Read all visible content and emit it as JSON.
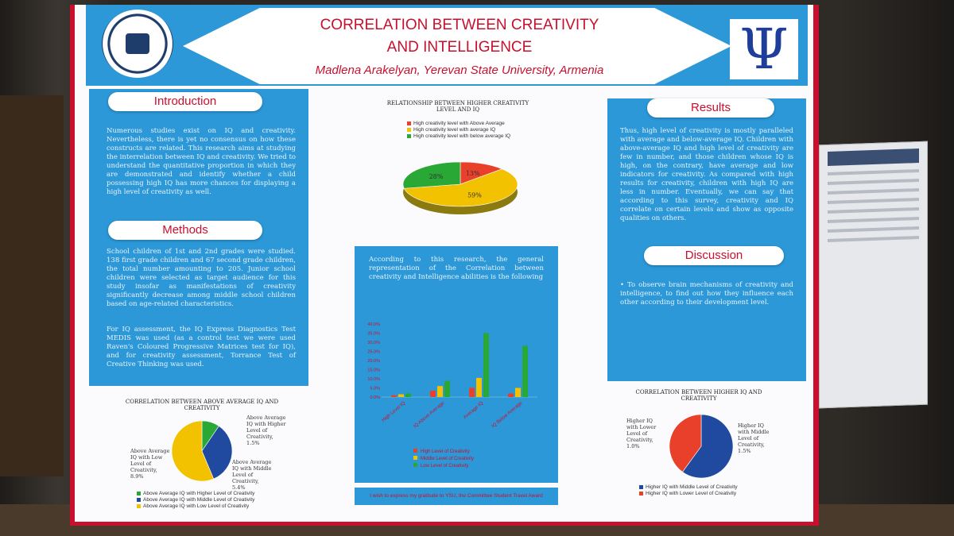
{
  "title_line1": "CORRELATION BETWEEN CREATIVITY",
  "title_line2": "AND INTELLIGENCE",
  "author": "Madlena Arakelyan, Yerevan State University, Armenia",
  "intro_heading": "Introduction",
  "intro_text": "Numerous studies exist on IQ and creativity. Nevertheless, there is yet no consensus on how these constructs are related. This research aims at studying the interrelation between IQ and creativity. We tried to understand the quantitative proportion in which they are demonstrated and identify whether a child possessing high IQ has more chances for displaying a high level of creativity as well.",
  "methods_heading": "Methods",
  "methods_text1": "School children of 1st and 2nd grades were studied. 138 first grade children and 67 second grade children, the total number amounting to 205. Junior school children were selected as target audience for this study insofar as manifestations of creativity significantly decrease among middle school children based on age-related characteristics.",
  "methods_text2": "For IQ assessment, the IQ Express Diagnostics Test MEDIS was used (as a control test we were used Raven's Coloured Progressive Matrices test for IQ), and for creativity assessment, Torrance Test of Creative Thinking was used.",
  "results_heading": "Results",
  "results_text": "Thus, high level of creativity is mostly paralleled with average and below-average IQ. Children with above-average IQ and high level of creativity are few in number, and those children whose IQ is high, on the contrary, have average and low indicators for creativity. As compared with high results for creativity, children with high IQ are less in number. Eventually, we can say that according to this survey, creativity and IQ correlate on certain levels and show as opposite qualities on others.",
  "discussion_heading": "Discussion",
  "discussion_text": "To observe brain mechanisms of creativity and intelligence, to find out how they influence each other according to their development level.",
  "center_text": "According to this research, the general representation of the Correlation between creativity and Intelligence abilities is the following",
  "footer_text": "I wish to express my gratitude to YSU, the Committee Student Travel Award",
  "colors": {
    "red": "#e8402a",
    "yellow": "#f2c200",
    "green": "#2aa836",
    "blue": "#1f4aa0"
  },
  "chart_data": [
    {
      "type": "pie",
      "title": "RELATIONSHIP BETWEEN HIGHER CREATIVITY LEVEL AND IQ",
      "legend": [
        "High creativity level with Above Average",
        "High creativity level with average IQ",
        "High creativity level with below average IQ"
      ],
      "slice_labels": [
        "13%",
        "59%",
        "28%"
      ],
      "values": [
        13,
        59,
        28
      ]
    },
    {
      "type": "pie",
      "title": "CORRELATION BETWEEN ABOVE AVERAGE IQ AND CREATIVITY",
      "legend": [
        "Above Average IQ with Higher Level of Creativity",
        "Above Average IQ with Middle Level of Creativity",
        "Above Average IQ with Low Level of Creativity"
      ],
      "slice_labels": [
        "Above Average IQ with Higher Level of Creativity, 1.5%",
        "Above Average IQ with Middle Level of Creativity, 5.4%",
        "Above Average IQ with Low Level of Creativity, 8.9%"
      ],
      "values": [
        1.5,
        5.4,
        8.9
      ]
    },
    {
      "type": "bar",
      "categories": [
        "High Level IQ",
        "IQ Above Average",
        "Average IQ",
        "IQ Below Average"
      ],
      "series": [
        {
          "name": "High Level of Creativity",
          "values": [
            1.0,
            3.5,
            5.0,
            2.0
          ]
        },
        {
          "name": "Middle Level of Creativity",
          "values": [
            1.5,
            6.0,
            10.5,
            5.0
          ]
        },
        {
          "name": "Low Level of Creativity",
          "values": [
            2.0,
            8.9,
            35.0,
            28.0
          ]
        }
      ],
      "y_ticks": [
        "0.0%",
        "5.0%",
        "10.0%",
        "15.0%",
        "20.0%",
        "25.0%",
        "30.0%",
        "35.0%",
        "40.0%"
      ],
      "ylim": [
        0,
        40
      ]
    },
    {
      "type": "pie",
      "title": "CORRELATION BETWEEN HIGHER IQ AND CREATIVITY",
      "legend": [
        "Higher IQ with Middle Level of Creativity",
        "Higher IQ with Lower Level of Creativity"
      ],
      "slice_labels": [
        "Higher IQ with Middle Level of Creativity, 1.5%",
        "Higher IQ with Lower Level of Creativity, 1.0%"
      ],
      "values": [
        1.5,
        1.0
      ]
    }
  ]
}
